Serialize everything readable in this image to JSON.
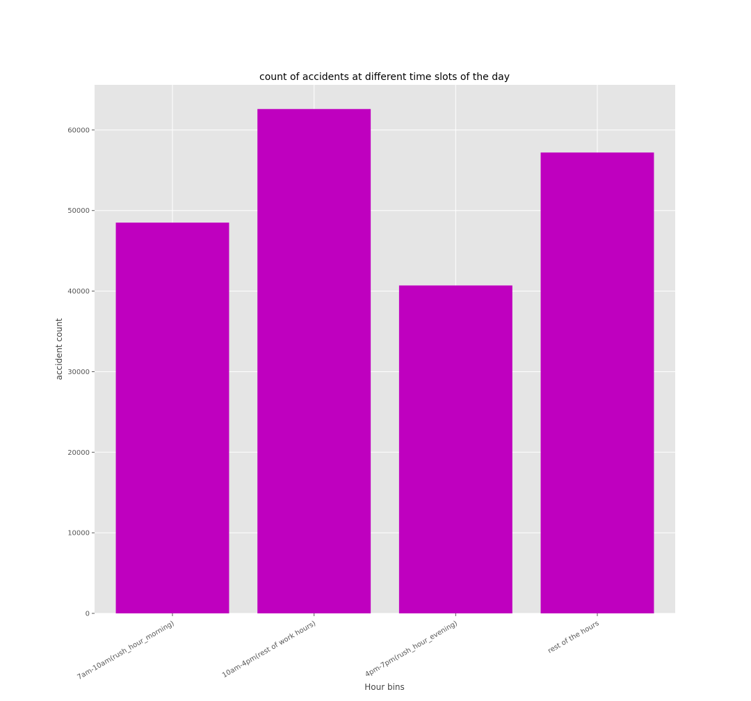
{
  "chart_data": {
    "type": "bar",
    "title": "count of accidents at different time slots of the day",
    "xlabel": "Hour bins",
    "ylabel": "accident count",
    "categories": [
      "7am-10am(rush_hour_morning)",
      "10am-4pm(rest of work hours)",
      "4pm-7pm(rush_hour_evening)",
      "rest of the hours"
    ],
    "values": [
      48500,
      62600,
      40700,
      57200
    ],
    "ylim": [
      0,
      65600
    ],
    "yticks": [
      0,
      10000,
      20000,
      30000,
      40000,
      50000,
      60000
    ],
    "ytick_labels": [
      "0",
      "10000",
      "20000",
      "30000",
      "40000",
      "50000",
      "60000"
    ],
    "grid": true,
    "legend": "none",
    "colors": {
      "bar": "#bf00bf",
      "plot_background": "#e5e5e5",
      "grid": "#ffffff",
      "tick": "#555555"
    }
  }
}
